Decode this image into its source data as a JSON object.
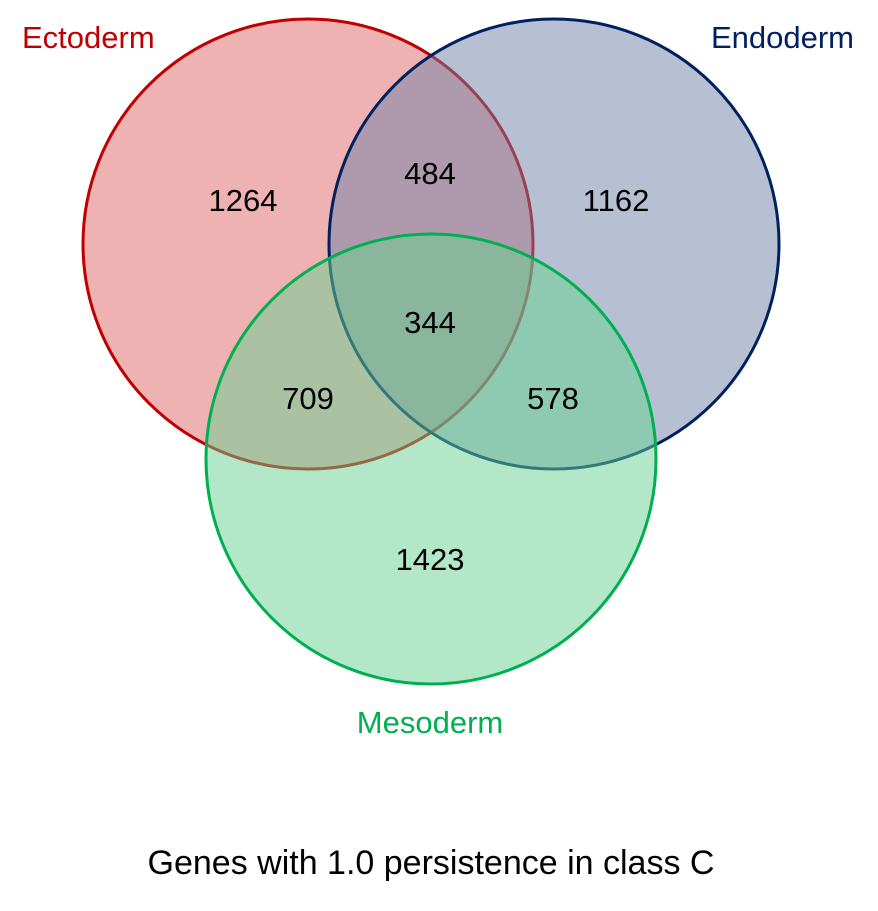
{
  "diagram": {
    "type": "venn-3",
    "sets": {
      "ectoderm": {
        "label": "Ectoderm",
        "stroke": "#c00000",
        "fill": "#e06666"
      },
      "endoderm": {
        "label": "Endoderm",
        "stroke": "#002060",
        "fill": "#6f82a8"
      },
      "mesoderm": {
        "label": "Mesoderm",
        "stroke": "#00b050",
        "fill": "#66d28f"
      }
    },
    "regions": {
      "ectoderm_only": "1264",
      "endoderm_only": "1162",
      "mesoderm_only": "1423",
      "ectoderm_endoderm": "484",
      "ectoderm_mesoderm": "709",
      "endoderm_mesoderm": "578",
      "all_three": "344"
    },
    "caption": "Genes with 1.0 persistence in class C"
  }
}
